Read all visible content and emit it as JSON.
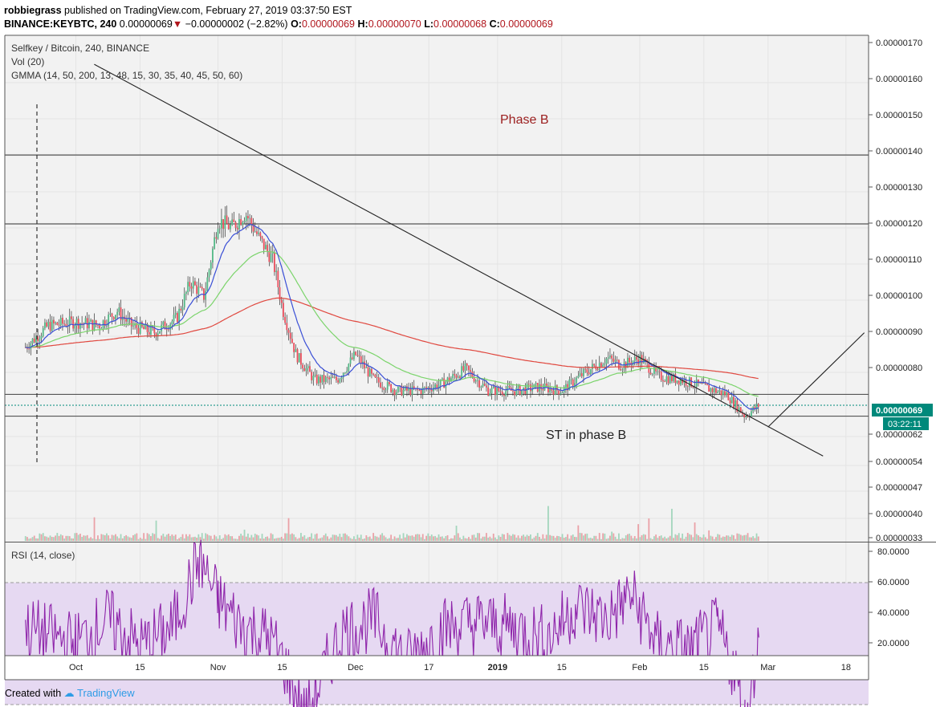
{
  "header": {
    "author": "robbiegrass",
    "published_text": "published on TradingView.com, February 27, 2019 03:37:50 EST",
    "symbol": "BINANCE:KEYBTC, 240",
    "last": "0.00000069",
    "change": "−0.00000002 (−2.82%)",
    "o_label": "O:",
    "o_value": "0.00000069",
    "h_label": "H:",
    "h_value": "0.00000070",
    "l_label": "L:",
    "l_value": "0.00000068",
    "c_label": "C:",
    "c_value": "0.00000069"
  },
  "legend": {
    "pair": "Selfkey / Bitcoin, 240, BINANCE",
    "vol": "Vol (20)",
    "gmma": "GMMA (14, 50, 200, 13, 48, 15, 30, 35, 40, 45, 50, 60)",
    "rsi": "RSI (14, close)"
  },
  "annotations": {
    "phase_b": "Phase B",
    "st_phase_b": "ST in phase B"
  },
  "price_axis": {
    "ticks": [
      "0.00000170",
      "0.00000160",
      "0.00000150",
      "0.00000140",
      "0.00000130",
      "0.00000120",
      "0.00000110",
      "0.00000100",
      "0.00000090",
      "0.00000080",
      "0.00000062",
      "0.00000054",
      "0.00000047",
      "0.00000040",
      "0.00000033"
    ],
    "last_price_label": "0.00000069",
    "countdown_label": "03:22:11"
  },
  "rsi_axis": {
    "ticks": [
      "80.0000",
      "60.0000",
      "40.0000",
      "20.0000"
    ]
  },
  "time_axis": {
    "labels": [
      "Oct",
      "15",
      "Nov",
      "15",
      "Dec",
      "17",
      "2019",
      "15",
      "Feb",
      "15",
      "Mar",
      "18"
    ]
  },
  "colors": {
    "background": "#f2f2f2",
    "candle_up": "#53b987",
    "candle_down": "#eb4d5c",
    "ema_fast": "#3a4fd6",
    "ema_mid": "#7bd46b",
    "ema_slow": "#e0483f",
    "rsi_line": "#8e24aa",
    "rsi_band": "#e6d9f2",
    "last_price": "#00897b",
    "annotation_text": "#9c1f1f"
  },
  "chart_data": {
    "type": "candlestick",
    "symbol": "BINANCE:KEYBTC",
    "timeframe": "240",
    "x_labels": [
      "Oct",
      "15",
      "Nov",
      "15",
      "Dec",
      "17",
      "2019",
      "15",
      "Feb",
      "15",
      "Mar",
      "18"
    ],
    "close_series": {
      "dates": [
        "2018-09-20",
        "2018-09-25",
        "2018-10-01",
        "2018-10-06",
        "2018-10-10",
        "2018-10-13",
        "2018-10-18",
        "2018-10-23",
        "2018-10-26",
        "2018-10-29",
        "2018-11-01",
        "2018-11-04",
        "2018-11-07",
        "2018-11-10",
        "2018-11-13",
        "2018-11-15",
        "2018-11-18",
        "2018-11-22",
        "2018-11-27",
        "2018-12-01",
        "2018-12-05",
        "2018-12-10",
        "2018-12-15",
        "2018-12-20",
        "2018-12-25",
        "2018-12-30",
        "2019-01-05",
        "2019-01-10",
        "2019-01-15",
        "2019-01-20",
        "2019-01-25",
        "2019-01-28",
        "2019-02-01",
        "2019-02-05",
        "2019-02-10",
        "2019-02-15",
        "2019-02-20",
        "2019-02-24",
        "2019-02-27"
      ],
      "close": [
        8.5e-07,
        9.1e-07,
        9.2e-07,
        9.1e-07,
        9.5e-07,
        9.1e-07,
        8.9e-07,
        9.3e-07,
        1.03e-06,
        9.9e-07,
        1.2e-06,
        1.18e-06,
        1.22e-06,
        1.15e-06,
        1.09e-06,
        9.6e-07,
        8.3e-07,
        7.6e-07,
        7.6e-07,
        8.3e-07,
        7.6e-07,
        7.3e-07,
        7.3e-07,
        7.5e-07,
        7.9e-07,
        7.3e-07,
        7.3e-07,
        7.4e-07,
        7.3e-07,
        7.8e-07,
        8.2e-07,
        8e-07,
        8.2e-07,
        7.7e-07,
        7.6e-07,
        7.4e-07,
        7.2e-07,
        6.6e-07,
        6.9e-07
      ]
    },
    "last": {
      "open": 6.9e-07,
      "high": 7e-07,
      "low": 6.8e-07,
      "close": 6.9e-07,
      "change": -2e-08,
      "change_pct": -2.82
    },
    "y_range": [
      3.3e-07,
      1.7e-06
    ],
    "horizontal_levels": [
      1.38e-06,
      1.19e-06,
      7.2e-07,
      6.6e-07
    ],
    "rsi": {
      "period": 14,
      "upper_band": 70,
      "lower_band": 30,
      "range": [
        15,
        85
      ],
      "dates": [
        "2018-09-20",
        "2018-10-01",
        "2018-10-08",
        "2018-10-15",
        "2018-10-22",
        "2018-10-28",
        "2018-11-01",
        "2018-11-06",
        "2018-11-12",
        "2018-11-15",
        "2018-11-20",
        "2018-11-28",
        "2018-12-05",
        "2018-12-12",
        "2018-12-20",
        "2018-12-28",
        "2019-01-05",
        "2019-01-12",
        "2019-01-18",
        "2019-01-25",
        "2019-01-30",
        "2019-02-05",
        "2019-02-12",
        "2019-02-18",
        "2019-02-22",
        "2019-02-24",
        "2019-02-27"
      ],
      "values": [
        55,
        50,
        58,
        49,
        55,
        78,
        64,
        56,
        52,
        45,
        26,
        54,
        58,
        44,
        55,
        57,
        55,
        52,
        62,
        58,
        66,
        50,
        48,
        55,
        40,
        23,
        52
      ]
    },
    "trendlines": [
      {
        "label": "descending resistance",
        "from": {
          "date": "2018-10-05",
          "price": 1.63e-06
        },
        "to": {
          "date": "2019-03-13",
          "price": 5.5e-07
        }
      },
      {
        "label": "rising support",
        "from": {
          "date": "2019-03-01",
          "price": 6.3e-07
        },
        "to": {
          "date": "2019-03-22",
          "price": 8.9e-07
        }
      }
    ],
    "annotations": [
      "Phase B",
      "ST in phase B"
    ]
  }
}
